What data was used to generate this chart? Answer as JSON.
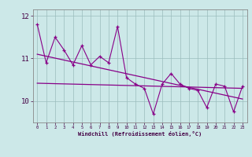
{
  "x": [
    0,
    1,
    2,
    3,
    4,
    5,
    6,
    7,
    8,
    9,
    10,
    11,
    12,
    13,
    14,
    15,
    16,
    17,
    18,
    19,
    20,
    21,
    22,
    23
  ],
  "y_main": [
    11.8,
    10.9,
    11.5,
    11.2,
    10.85,
    11.3,
    10.85,
    11.05,
    10.9,
    11.75,
    10.55,
    10.4,
    10.3,
    9.7,
    10.4,
    10.65,
    10.4,
    10.3,
    10.25,
    9.85,
    10.4,
    10.35,
    9.75,
    10.35
  ],
  "y_trend1_start": 10.42,
  "y_trend1_end": 10.3,
  "y_trend2_start": 11.1,
  "y_trend2_end": 10.05,
  "ylim_min": 9.5,
  "ylim_max": 12.15,
  "yticks": [
    10,
    11,
    12
  ],
  "xticks": [
    0,
    1,
    2,
    3,
    4,
    5,
    6,
    7,
    8,
    9,
    10,
    11,
    12,
    13,
    14,
    15,
    16,
    17,
    18,
    19,
    20,
    21,
    22,
    23
  ],
  "xlabel": "Windchill (Refroidissement éolien,°C)",
  "line_color": "#880088",
  "bg_color": "#cce8e8",
  "grid_color": "#9bbcbc",
  "axis_color": "#888888",
  "marker": "+"
}
